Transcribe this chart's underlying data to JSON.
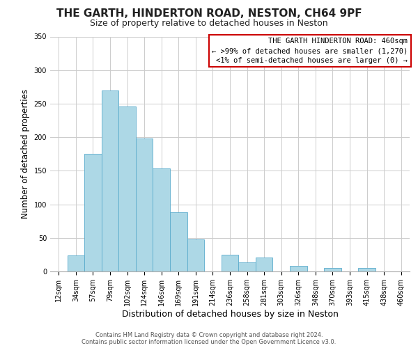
{
  "title": "THE GARTH, HINDERTON ROAD, NESTON, CH64 9PF",
  "subtitle": "Size of property relative to detached houses in Neston",
  "xlabel": "Distribution of detached houses by size in Neston",
  "ylabel": "Number of detached properties",
  "bar_labels": [
    "12sqm",
    "34sqm",
    "57sqm",
    "79sqm",
    "102sqm",
    "124sqm",
    "146sqm",
    "169sqm",
    "191sqm",
    "214sqm",
    "236sqm",
    "258sqm",
    "281sqm",
    "303sqm",
    "326sqm",
    "348sqm",
    "370sqm",
    "393sqm",
    "415sqm",
    "438sqm",
    "460sqm"
  ],
  "bar_values": [
    0,
    24,
    175,
    270,
    246,
    198,
    153,
    88,
    48,
    0,
    25,
    14,
    21,
    0,
    8,
    0,
    5,
    0,
    5,
    0,
    0
  ],
  "bar_color": "#add8e6",
  "bar_edge_color": "#5aabcc",
  "ylim": [
    0,
    350
  ],
  "yticks": [
    0,
    50,
    100,
    150,
    200,
    250,
    300,
    350
  ],
  "annotation_box_text_line1": "THE GARTH HINDERTON ROAD: 460sqm",
  "annotation_box_text_line2": "← >99% of detached houses are smaller (1,270)",
  "annotation_box_text_line3": "<1% of semi-detached houses are larger (0) →",
  "annotation_box_edge_color": "#cc0000",
  "footer_line1": "Contains HM Land Registry data © Crown copyright and database right 2024.",
  "footer_line2": "Contains public sector information licensed under the Open Government Licence v3.0.",
  "bg_color": "#ffffff",
  "grid_color": "#cccccc",
  "title_fontsize": 11,
  "subtitle_fontsize": 9,
  "ylabel_fontsize": 8.5,
  "xlabel_fontsize": 9,
  "tick_fontsize": 7,
  "annot_fontsize": 7.5,
  "footer_fontsize": 6
}
